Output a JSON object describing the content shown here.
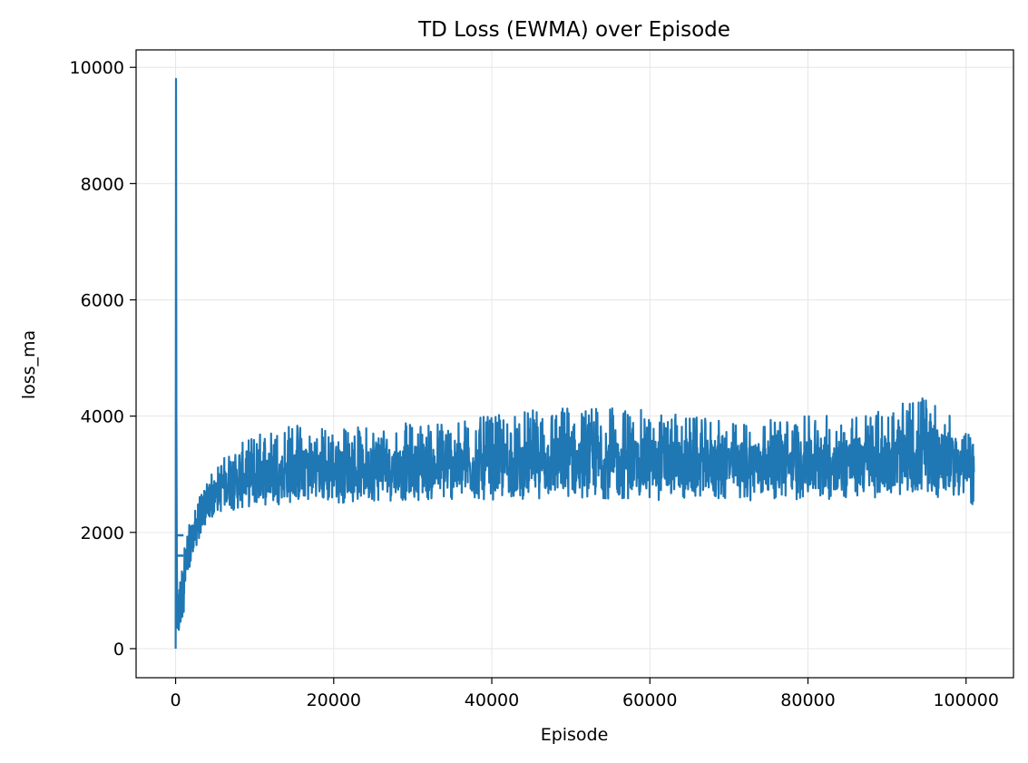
{
  "chart_data": {
    "type": "line",
    "title": "TD Loss (EWMA) over Episode",
    "xlabel": "Episode",
    "ylabel": "loss_ma",
    "xlim": [
      -5000,
      106000
    ],
    "ylim": [
      -500,
      10300
    ],
    "xticks": [
      0,
      20000,
      40000,
      60000,
      80000,
      100000
    ],
    "yticks": [
      0,
      2000,
      4000,
      6000,
      8000,
      10000
    ],
    "grid": true,
    "legend": "none",
    "line_color": "#1f77b4",
    "series": [
      {
        "x": [
          0,
          50,
          100,
          150,
          200,
          300,
          500,
          800,
          1200,
          2000,
          3000,
          4000,
          5000,
          6000,
          8000,
          10000,
          15000,
          20000,
          30000,
          40000,
          50000,
          60000,
          70000,
          80000,
          90000,
          95000,
          101000
        ],
        "y": [
          0,
          9800,
          4000,
          1500,
          800,
          300,
          500,
          800,
          1300,
          1800,
          2200,
          2500,
          2700,
          2800,
          2900,
          2950,
          3000,
          3050,
          3100,
          3100,
          3150,
          3150,
          3150,
          3150,
          3200,
          3200,
          3200
        ],
        "band_low": [
          0,
          9800,
          4000,
          1500,
          100,
          100,
          200,
          400,
          800,
          1500,
          1900,
          2100,
          2300,
          2350,
          2400,
          2450,
          2500,
          2500,
          2550,
          2550,
          2600,
          2550,
          2550,
          2550,
          2600,
          2650,
          2450
        ],
        "band_high": [
          0,
          9800,
          4000,
          1500,
          1000,
          900,
          1200,
          1500,
          2000,
          2200,
          2600,
          2900,
          3100,
          3300,
          3500,
          3700,
          3900,
          3800,
          3900,
          4000,
          4200,
          4100,
          3900,
          4000,
          4100,
          4400,
          3600
        ]
      }
    ]
  }
}
